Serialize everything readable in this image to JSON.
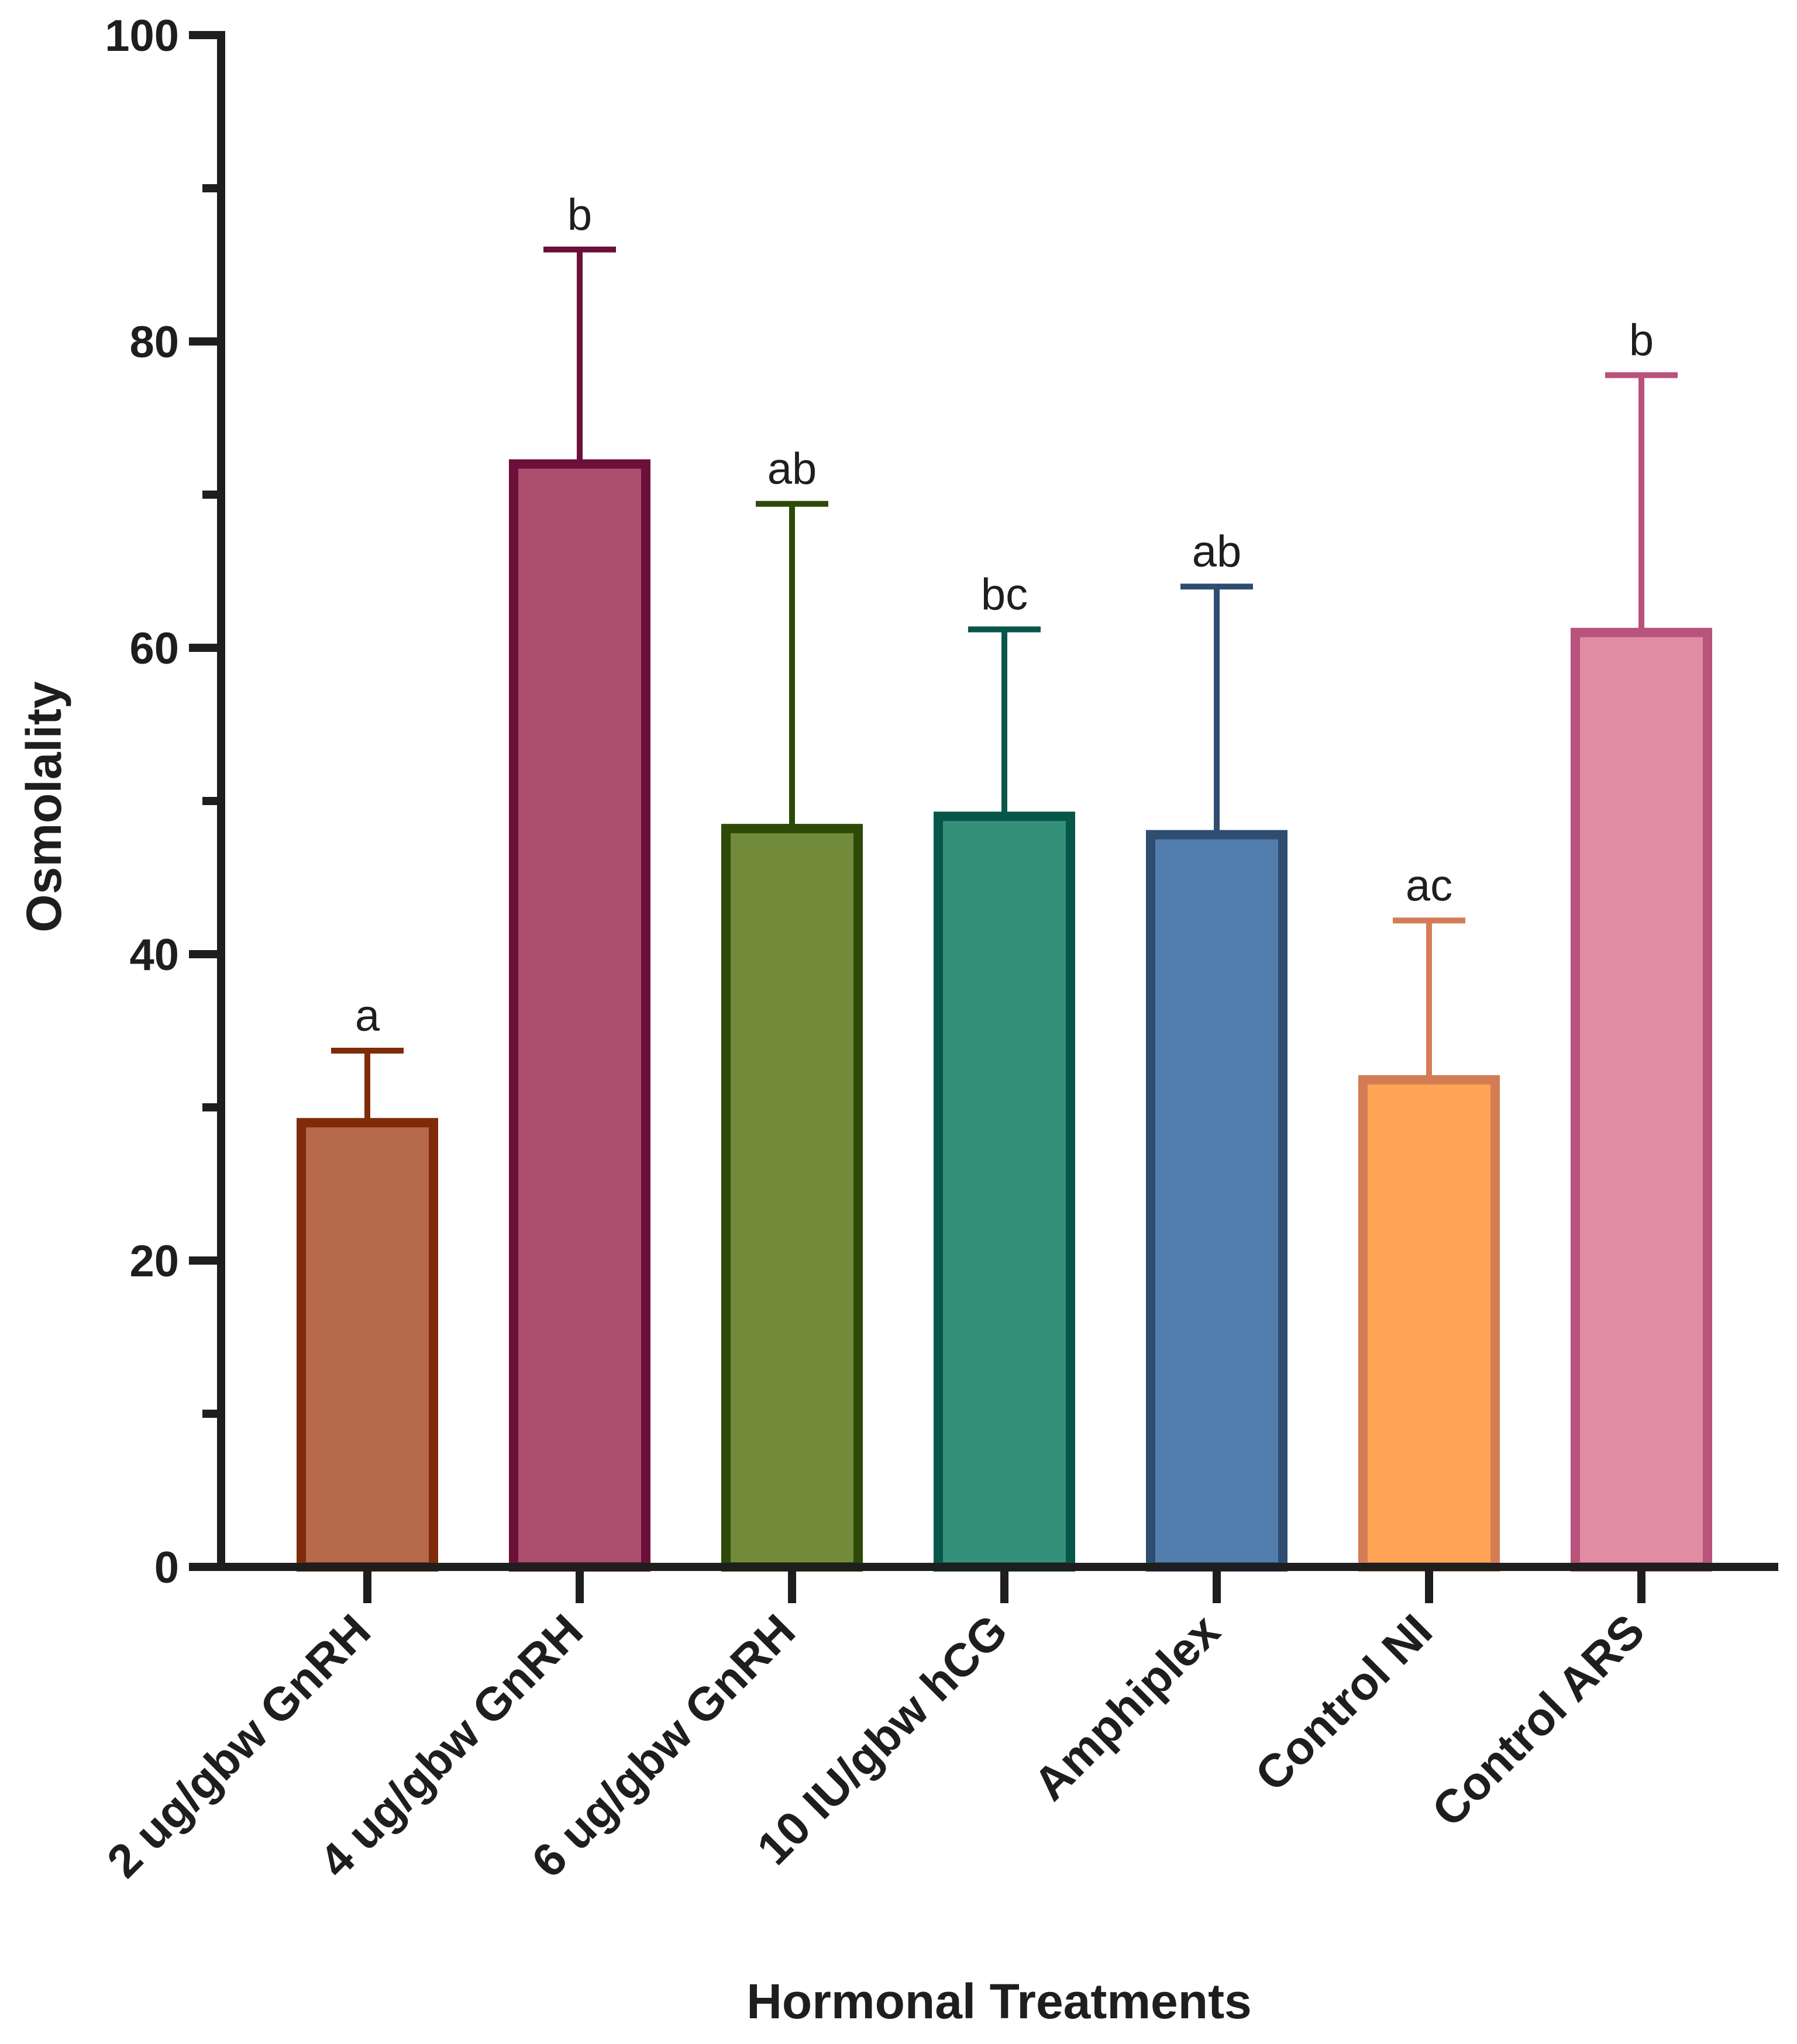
{
  "chart_data": {
    "type": "bar",
    "title": "",
    "xlabel": "Hormonal Treatments",
    "ylabel": "Osmolality",
    "ylim": [
      0,
      100
    ],
    "yticks": [
      0,
      20,
      40,
      60,
      80,
      100
    ],
    "yminor": [
      10,
      30,
      50,
      70,
      90
    ],
    "grid": false,
    "categories": [
      "2 ug/gbw GnRH",
      "4 ug/gbw GnRH",
      "6 ug/gbw GnRH",
      "10 IU/gbw hCG",
      "Amphiplex",
      "Control NI",
      "Control ARS"
    ],
    "values": [
      29,
      72,
      48.2,
      49,
      47.8,
      31.8,
      61
    ],
    "error_upper": [
      33.7,
      86,
      69.4,
      61.2,
      64,
      42.2,
      77.8
    ],
    "significance": [
      "a",
      "b",
      "ab",
      "bc",
      "ab",
      "ac",
      "b"
    ],
    "fill_colors": [
      "#b5684a",
      "#ac4e6d",
      "#718b3a",
      "#359079",
      "#527eae",
      "#fea454",
      "#e08ca3"
    ],
    "edge_colors": [
      "#7f2b0a",
      "#6a1039",
      "#2d4a08",
      "#06564a",
      "#2f4d71",
      "#d47d55",
      "#b8537b"
    ]
  }
}
